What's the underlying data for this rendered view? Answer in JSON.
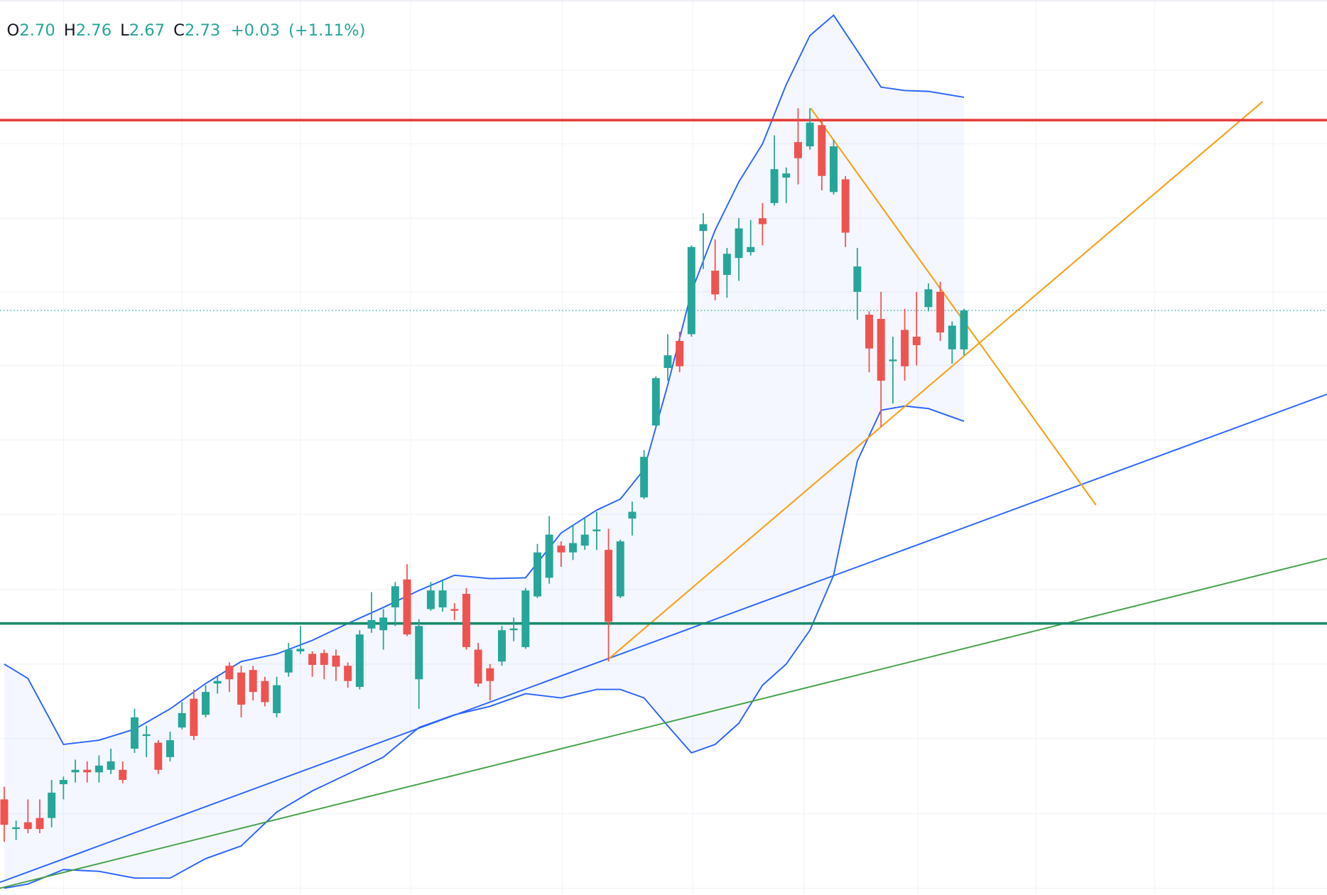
{
  "header": {
    "ohlc": [
      {
        "label": "O",
        "value": 2.7,
        "value_label": "2.70"
      },
      {
        "label": "H",
        "value": 2.76,
        "value_label": "2.76"
      },
      {
        "label": "L",
        "value": 2.67,
        "value_label": "2.67"
      },
      {
        "label": "C",
        "value": 2.73,
        "value_label": "2.73"
      }
    ],
    "change": 0.03,
    "change_label": "+0.03",
    "change_pct": 1.11,
    "change_pct_label": "(+1.11%)"
  },
  "chart_data": {
    "type": "candlestick",
    "x": [
      0,
      1,
      2,
      3,
      4,
      5,
      6,
      7,
      8,
      9,
      10,
      11,
      12,
      13,
      14,
      15,
      16,
      17,
      18,
      19,
      20,
      21,
      22,
      23,
      24,
      25,
      26,
      27,
      28,
      29,
      30,
      31,
      32,
      33,
      34,
      35,
      36,
      37,
      38,
      39,
      40,
      41,
      42,
      43,
      44,
      45,
      46,
      47,
      48,
      49,
      50,
      51,
      52,
      53,
      54,
      55,
      56,
      57,
      58,
      59,
      60,
      61,
      62,
      63,
      64,
      65,
      66,
      67,
      68,
      69,
      70,
      71,
      72,
      73,
      74,
      75,
      76,
      77,
      78,
      79,
      80,
      81
    ],
    "open": [
      2.152,
      2.117,
      2.125,
      2.13,
      2.13,
      2.17,
      2.184,
      2.187,
      2.184,
      2.187,
      2.187,
      2.212,
      2.227,
      2.219,
      2.202,
      2.237,
      2.271,
      2.252,
      2.289,
      2.31,
      2.302,
      2.305,
      2.292,
      2.254,
      2.302,
      2.327,
      2.324,
      2.325,
      2.322,
      2.31,
      2.285,
      2.354,
      2.352,
      2.379,
      2.412,
      2.294,
      2.377,
      2.379,
      2.377,
      2.395,
      2.329,
      2.307,
      2.315,
      2.352,
      2.332,
      2.392,
      2.414,
      2.452,
      2.444,
      2.452,
      2.469,
      2.447,
      2.392,
      2.484,
      2.509,
      2.594,
      2.662,
      2.694,
      2.702,
      2.824,
      2.777,
      2.772,
      2.792,
      2.799,
      2.839,
      2.857,
      2.887,
      2.929,
      2.924,
      2.949,
      2.87,
      2.885,
      2.752,
      2.725,
      2.72,
      2.67,
      2.707,
      2.699,
      2.734,
      2.752,
      2.684,
      2.684
    ],
    "high": [
      2.167,
      2.127,
      2.152,
      2.152,
      2.175,
      2.179,
      2.199,
      2.197,
      2.204,
      2.212,
      2.197,
      2.259,
      2.239,
      2.222,
      2.232,
      2.267,
      2.282,
      2.287,
      2.297,
      2.314,
      2.31,
      2.31,
      2.297,
      2.297,
      2.337,
      2.357,
      2.327,
      2.329,
      2.329,
      2.314,
      2.352,
      2.397,
      2.377,
      2.409,
      2.43,
      2.365,
      2.409,
      2.412,
      2.384,
      2.402,
      2.337,
      2.312,
      2.357,
      2.367,
      2.402,
      2.454,
      2.487,
      2.457,
      2.477,
      2.485,
      2.492,
      2.472,
      2.459,
      2.504,
      2.565,
      2.652,
      2.702,
      2.705,
      2.807,
      2.845,
      2.814,
      2.804,
      2.839,
      2.837,
      2.857,
      2.937,
      2.899,
      2.969,
      2.969,
      2.957,
      2.932,
      2.889,
      2.804,
      2.729,
      2.752,
      2.699,
      2.732,
      2.752,
      2.762,
      2.764,
      2.717,
      2.732
    ],
    "low": [
      2.102,
      2.104,
      2.112,
      2.112,
      2.119,
      2.152,
      2.172,
      2.172,
      2.172,
      2.182,
      2.171,
      2.207,
      2.202,
      2.182,
      2.197,
      2.235,
      2.222,
      2.249,
      2.277,
      2.279,
      2.249,
      2.269,
      2.262,
      2.249,
      2.297,
      2.324,
      2.297,
      2.294,
      2.292,
      2.284,
      2.282,
      2.349,
      2.329,
      2.357,
      2.345,
      2.259,
      2.375,
      2.374,
      2.364,
      2.329,
      2.285,
      2.269,
      2.31,
      2.339,
      2.33,
      2.39,
      2.407,
      2.427,
      2.435,
      2.447,
      2.447,
      2.315,
      2.39,
      2.464,
      2.507,
      2.592,
      2.647,
      2.657,
      2.699,
      2.779,
      2.742,
      2.745,
      2.765,
      2.795,
      2.807,
      2.854,
      2.857,
      2.879,
      2.92,
      2.872,
      2.867,
      2.805,
      2.719,
      2.657,
      2.592,
      2.62,
      2.647,
      2.665,
      2.729,
      2.694,
      2.667,
      2.677
    ],
    "close": [
      2.122,
      2.119,
      2.117,
      2.117,
      2.16,
      2.175,
      2.187,
      2.184,
      2.192,
      2.197,
      2.175,
      2.249,
      2.229,
      2.187,
      2.222,
      2.254,
      2.227,
      2.279,
      2.292,
      2.294,
      2.264,
      2.279,
      2.267,
      2.287,
      2.329,
      2.33,
      2.311,
      2.311,
      2.309,
      2.292,
      2.347,
      2.364,
      2.367,
      2.404,
      2.347,
      2.357,
      2.399,
      2.399,
      2.375,
      2.332,
      2.289,
      2.292,
      2.352,
      2.354,
      2.399,
      2.444,
      2.465,
      2.444,
      2.455,
      2.465,
      2.471,
      2.362,
      2.457,
      2.492,
      2.557,
      2.65,
      2.677,
      2.664,
      2.805,
      2.832,
      2.749,
      2.797,
      2.827,
      2.805,
      2.832,
      2.897,
      2.892,
      2.91,
      2.952,
      2.889,
      2.924,
      2.822,
      2.782,
      2.685,
      2.647,
      2.672,
      2.664,
      2.689,
      2.755,
      2.704,
      2.712,
      2.73
    ],
    "up_color": "#26a69a",
    "down_color": "#ef5350",
    "bands": {
      "color": "#2962ff",
      "fill": "#2962ff",
      "x": [
        0,
        2,
        5,
        8,
        11,
        14,
        17,
        20,
        23,
        26,
        29,
        32,
        35,
        38,
        41,
        44,
        47,
        50,
        52,
        54,
        56,
        58,
        60,
        62,
        64,
        66,
        68,
        70,
        72,
        74,
        76,
        78,
        81
      ],
      "upper": [
        2.312,
        2.295,
        2.217,
        2.222,
        2.235,
        2.259,
        2.289,
        2.315,
        2.324,
        2.34,
        2.36,
        2.379,
        2.399,
        2.417,
        2.413,
        2.414,
        2.467,
        2.494,
        2.507,
        2.542,
        2.642,
        2.752,
        2.825,
        2.882,
        2.927,
        2.997,
        3.055,
        3.079,
        3.037,
        2.994,
        2.99,
        2.989,
        2.982
      ],
      "lower": [
        2.047,
        2.052,
        2.069,
        2.067,
        2.059,
        2.059,
        2.082,
        2.097,
        2.137,
        2.162,
        2.182,
        2.202,
        2.237,
        2.252,
        2.262,
        2.277,
        2.272,
        2.282,
        2.282,
        2.272,
        2.239,
        2.207,
        2.217,
        2.242,
        2.287,
        2.312,
        2.352,
        2.417,
        2.552,
        2.612,
        2.617,
        2.614,
        2.599
      ]
    },
    "levels": [
      {
        "value": 2.955,
        "color": "#e53935"
      },
      {
        "value": 2.36,
        "color": "#1b8a6b"
      }
    ],
    "last_price": 2.73,
    "last_price_color": "#26a69a",
    "xlim": [
      -0.357,
      111.64
    ],
    "ylim": [
      2.039,
      3.097
    ],
    "xticks": [
      5,
      15,
      25,
      34.3,
      47.1,
      58.1,
      67.5,
      77.1,
      87.1,
      97.1,
      107.1
    ],
    "yticks": [
      3.014,
      2.927,
      2.839,
      2.752,
      2.665,
      2.577,
      2.489,
      2.4,
      2.312,
      2.224,
      2.135,
      2.047
    ],
    "grid": true
  }
}
